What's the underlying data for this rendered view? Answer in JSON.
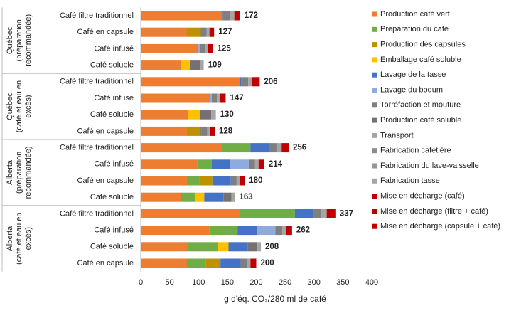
{
  "chart_data": {
    "type": "stacked-bar-horizontal",
    "xlabel": "g d'éq. CO₂/280 ml de café",
    "xlim": [
      0,
      400
    ],
    "xticks": [
      0,
      50,
      100,
      150,
      200,
      250,
      300,
      350,
      400
    ],
    "groups": [
      {
        "lines": [
          "Québec",
          "(préparation",
          "recommandée)"
        ],
        "categories": [
          "Café filtre traditionnel",
          "Café en capsule",
          "Café infusé",
          "Café soluble"
        ]
      },
      {
        "lines": [
          "Québec",
          "(café et eau en",
          "excès)"
        ],
        "categories": [
          "Café filtre traditionnel",
          "Café infusé",
          "Café soluble",
          "Café en capsule"
        ]
      },
      {
        "lines": [
          "Alberta",
          "(préparation",
          "recommandée)"
        ],
        "categories": [
          "Café filtre traditionnel",
          "Café infusé",
          "Café en capsule",
          "Café soluble"
        ]
      },
      {
        "lines": [
          "Alberta",
          "(café et eau en",
          "excès)"
        ],
        "categories": [
          "Café filtre traditionnel",
          "Café infusé",
          "Café soluble",
          "Café en capsule"
        ]
      }
    ],
    "totals": [
      172,
      127,
      125,
      109,
      206,
      147,
      130,
      128,
      256,
      214,
      180,
      163,
      337,
      262,
      208,
      200
    ],
    "series": [
      {
        "name": "Production café vert",
        "color": "#ED7D31",
        "values": [
          141,
          80,
          98,
          69,
          172,
          119,
          82,
          80,
          141,
          98,
          80,
          69,
          172,
          119,
          82,
          80
        ]
      },
      {
        "name": "Préparation du café",
        "color": "#70AD47",
        "values": [
          0,
          0,
          0,
          0,
          0,
          0,
          0,
          0,
          49,
          25,
          21,
          25,
          95,
          49,
          51,
          33
        ]
      },
      {
        "name": "Production des capsules",
        "color": "#BF9000",
        "values": [
          0,
          24,
          0,
          0,
          0,
          0,
          0,
          24,
          0,
          0,
          23,
          0,
          0,
          0,
          0,
          25
        ]
      },
      {
        "name": "Emballage café soluble",
        "color": "#FFC000",
        "values": [
          0,
          0,
          0,
          16,
          0,
          0,
          20,
          0,
          0,
          0,
          0,
          16,
          0,
          0,
          19,
          0
        ]
      },
      {
        "name": "Lavage de la tasse",
        "color": "#4472C4",
        "values": [
          1,
          0,
          2,
          0,
          2,
          2,
          0,
          1,
          32,
          32,
          32,
          33,
          33,
          33,
          33,
          35
        ]
      },
      {
        "name": "Lavage du bodum",
        "color": "#8FAADC",
        "values": [
          0,
          0,
          2,
          0,
          0,
          2,
          0,
          0,
          0,
          32,
          0,
          0,
          0,
          32,
          0,
          0
        ]
      },
      {
        "name": "Torréfaction et mouture",
        "color": "#7F7F7F",
        "values": [
          13,
          10,
          9,
          0,
          12,
          9,
          0,
          10,
          13,
          11,
          10,
          0,
          13,
          12,
          0,
          11
        ]
      },
      {
        "name": "Production café soluble",
        "color": "#767171",
        "values": [
          0,
          0,
          0,
          18,
          0,
          0,
          20,
          0,
          0,
          0,
          0,
          14,
          0,
          0,
          17,
          0
        ]
      },
      {
        "name": "Transport",
        "color": "#A5A5A5",
        "values": [
          7,
          5,
          5,
          6,
          7,
          5,
          8,
          5,
          9,
          6,
          6,
          6,
          9,
          7,
          6,
          6
        ]
      },
      {
        "name": "Fabrication cafetière",
        "color": "#8C8C8C",
        "values": [
          0,
          0,
          0,
          0,
          0,
          0,
          0,
          0,
          0,
          0,
          0,
          0,
          0,
          0,
          0,
          0
        ]
      },
      {
        "name": "Fabrication du lave-vaisselle",
        "color": "#969696",
        "values": [
          0,
          0,
          0,
          0,
          0,
          0,
          0,
          0,
          0,
          0,
          0,
          0,
          0,
          0,
          0,
          0
        ]
      },
      {
        "name": "Fabrication tasse",
        "color": "#A6A6A6",
        "values": [
          0,
          0,
          0,
          0,
          0,
          0,
          0,
          0,
          0,
          0,
          0,
          0,
          0,
          0,
          0,
          0
        ]
      },
      {
        "name": "Mise en décharge (café)",
        "color": "#C00000",
        "values": [
          0,
          0,
          9,
          0,
          0,
          10,
          0,
          0,
          0,
          10,
          0,
          0,
          0,
          10,
          0,
          0
        ]
      },
      {
        "name": "Mise en décharge (filtre + café)",
        "color": "#C00000",
        "values": [
          10,
          0,
          0,
          0,
          13,
          0,
          0,
          0,
          12,
          0,
          0,
          0,
          15,
          0,
          0,
          0
        ]
      },
      {
        "name": "Mise en décharge (capsule + café)",
        "color": "#C00000",
        "values": [
          0,
          8,
          0,
          0,
          0,
          0,
          0,
          8,
          0,
          0,
          8,
          0,
          0,
          0,
          0,
          10
        ]
      }
    ]
  }
}
